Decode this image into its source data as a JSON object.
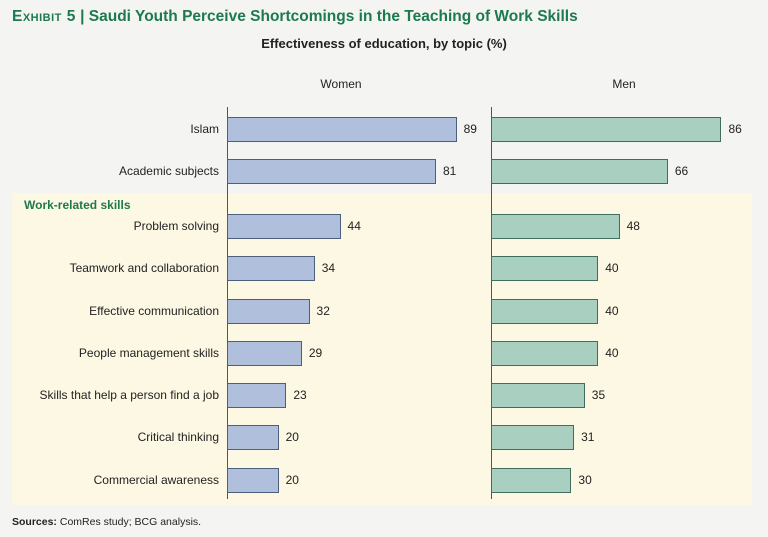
{
  "header": {
    "exhibit_tag": "Exhibit 5",
    "title_separator": " | ",
    "title": "Saudi Youth Perceive Shortcomings in the Teaching of Work Skills",
    "subtitle": "Effectiveness of education, by topic (%)"
  },
  "group_label": "Work-related skills",
  "chart_data": {
    "type": "bar",
    "orientation": "horizontal",
    "categories": [
      "Islam",
      "Academic subjects",
      "Problem solving",
      "Teamwork and collaboration",
      "Effective communication",
      "People management skills",
      "Skills that help a person find a job",
      "Critical thinking",
      "Commercial awareness"
    ],
    "series": [
      {
        "name": "Women",
        "values": [
          89,
          81,
          44,
          34,
          32,
          29,
          23,
          20,
          20
        ],
        "color": "#b0bfdc"
      },
      {
        "name": "Men",
        "values": [
          86,
          66,
          48,
          40,
          40,
          40,
          35,
          31,
          30
        ],
        "color": "#a9cfc1"
      }
    ],
    "xlim": [
      0,
      100
    ],
    "grid": false,
    "data_labels": true,
    "highlight_group": {
      "label": "Work-related skills",
      "start_index": 2,
      "end_index": 8,
      "color": "#fcf8e3"
    }
  },
  "footer": {
    "sources_label": "Sources:",
    "sources_text": " ComRes study; BCG analysis."
  }
}
